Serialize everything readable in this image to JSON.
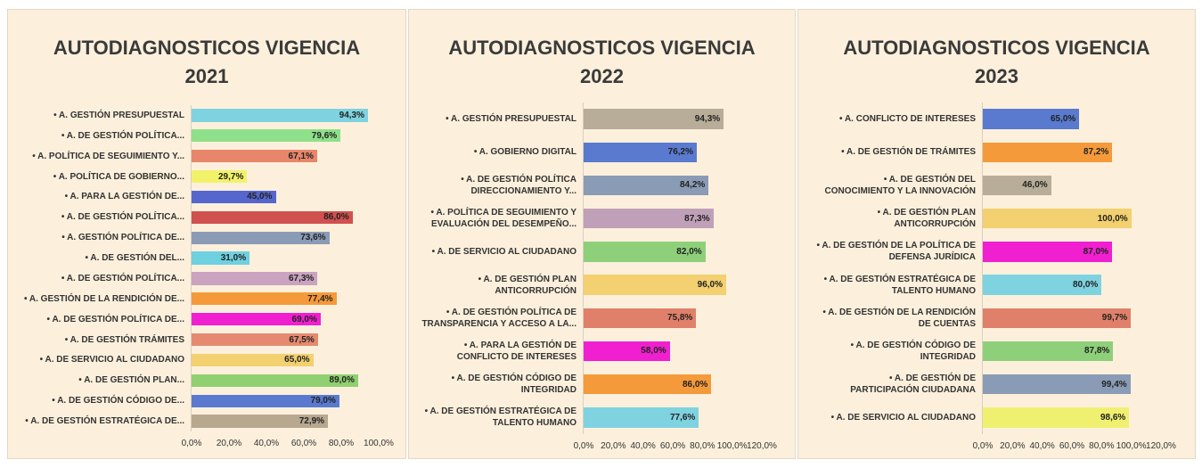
{
  "chart_data": [
    {
      "type": "bar",
      "orientation": "horizontal",
      "title": "AUTODIAGNOSTICOS VIGENCIA\n2021",
      "categories": [
        "• A. GESTIÓN PRESUPUESTAL",
        "• A. DE GESTIÓN POLÍTICA...",
        "• A. POLÍTICA DE SEGUIMIENTO Y...",
        "• A. POLÍTICA DE GOBIERNO...",
        "• A. PARA LA GESTIÓN DE...",
        "• A. DE GESTIÓN POLÍTICA...",
        "• A. GESTIÓN POLÍTICA DE...",
        "• A. DE GESTIÓN DEL...",
        "• A. DE GESTIÓN POLÍTICA...",
        "• A. GESTIÓN DE LA RENDICIÓN DE...",
        "• A. DE GESTIÓN POLÍTICA DE...",
        "• A. DE GESTIÓN TRÁMITES",
        "• A. DE SERVICIO AL CIUDADANO",
        "• A. DE GESTIÓN PLAN...",
        "• A. DE GESTIÓN CÓDIGO DE...",
        "• A. DE GESTIÓN ESTRATÉGICA DE..."
      ],
      "values": [
        94.3,
        79.6,
        67.1,
        29.7,
        45.0,
        86.0,
        73.6,
        31.0,
        67.3,
        77.4,
        69.0,
        67.5,
        65.0,
        89.0,
        79.0,
        72.9
      ],
      "value_labels": [
        "94,3%",
        "79,6%",
        "67,1%",
        "29,7%",
        "45,0%",
        "86,0%",
        "73,6%",
        "31,0%",
        "67,3%",
        "77,4%",
        "69,0%",
        "67,5%",
        "65,0%",
        "89,0%",
        "79,0%",
        "72,9%"
      ],
      "colors": [
        "#7fd3e0",
        "#8ee08a",
        "#e8866b",
        "#f2f26a",
        "#5566cc",
        "#d05050",
        "#8a9bb5",
        "#6fd0e0",
        "#c9a3c0",
        "#f59a3a",
        "#f020d0",
        "#e58a70",
        "#f3d070",
        "#90d070",
        "#5a7ad0",
        "#b8a890"
      ],
      "xlim": [
        0,
        100
      ],
      "xticks": [
        {
          "value": 0,
          "label": "0,0%"
        },
        {
          "value": 20,
          "label": "20,0%"
        },
        {
          "value": 40,
          "label": "40,0%"
        },
        {
          "value": 60,
          "label": "60,0%"
        },
        {
          "value": 80,
          "label": "80,0%"
        },
        {
          "value": 100,
          "label": "100,0%"
        }
      ]
    },
    {
      "type": "bar",
      "orientation": "horizontal",
      "title": "AUTODIAGNOSTICOS VIGENCIA\n2022",
      "categories": [
        "• A. GESTIÓN PRESUPUESTAL",
        "• A. GOBIERNO DIGITAL",
        "• A. DE GESTIÓN POLÍTICA\nDIRECCIONAMIENTO Y...",
        "• A. POLÍTICA DE SEGUIMIENTO Y\nEVALUACIÓN DEL DESEMPEÑO...",
        "• A. DE SERVICIO AL CIUDADANO",
        "• A. DE GESTIÓN PLAN\nANTICORRUPCIÓN",
        "• A. DE GESTIÓN POLÍTICA DE\nTRANSPARENCIA Y ACCESO A LA...",
        "• A. PARA LA GESTIÓN DE\nCONFLICTO DE INTERESES",
        "• A. DE GESTIÓN CÓDIGO DE\nINTEGRIDAD",
        "• A. DE GESTIÓN ESTRATÉGICA DE\nTALENTO HUMANO"
      ],
      "values": [
        94.3,
        76.2,
        84.2,
        87.3,
        82.0,
        96.0,
        75.8,
        58.0,
        86.0,
        77.6
      ],
      "value_labels": [
        "94,3%",
        "76,2%",
        "84,2%",
        "87,3%",
        "82,0%",
        "96,0%",
        "75,8%",
        "58,0%",
        "86,0%",
        "77,6%"
      ],
      "colors": [
        "#b8ad98",
        "#5a7ad0",
        "#8a9bb5",
        "#c0a0b8",
        "#8ed07a",
        "#f3d070",
        "#e0806a",
        "#f020d0",
        "#f59a3a",
        "#7fd3e0"
      ],
      "xlim": [
        0,
        120
      ],
      "xticks": [
        {
          "value": 0,
          "label": "0,0%"
        },
        {
          "value": 20,
          "label": "20,0%"
        },
        {
          "value": 40,
          "label": "40,0%"
        },
        {
          "value": 60,
          "label": "60,0%"
        },
        {
          "value": 80,
          "label": "80,0%"
        },
        {
          "value": 100,
          "label": "100,0%"
        },
        {
          "value": 120,
          "label": "120,0%"
        }
      ]
    },
    {
      "type": "bar",
      "orientation": "horizontal",
      "title": "AUTODIAGNOSTICOS VIGENCIA\n2023",
      "categories": [
        "• A. CONFLICTO DE INTERESES",
        "• A. DE GESTIÓN DE TRÁMITES",
        "• A. DE GESTIÓN DEL\nCONOCIMIENTO Y LA INNOVACIÓN",
        "• A. DE GESTIÓN PLAN\nANTICORRUPCIÓN",
        "• A. DE GESTIÓN DE LA POLÍTICA DE\nDEFENSA JURÍDICA",
        "• A. DE GESTIÓN ESTRATÉGICA DE\nTALENTO HUMANO",
        "• A. DE GESTIÓN DE LA RENDICIÓN\nDE CUENTAS",
        "• A. DE GESTIÓN CÓDIGO DE\nINTEGRIDAD",
        "• A. DE GESTIÓN DE\nPARTICIPACIÓN CIUDADANA",
        "• A. DE SERVICIO AL CIUDADANO"
      ],
      "values": [
        65.0,
        87.2,
        46.0,
        100.0,
        87.0,
        80.0,
        99.7,
        87.8,
        99.4,
        98.6
      ],
      "value_labels": [
        "65,0%",
        "87,2%",
        "46,0%",
        "100,0%",
        "87,0%",
        "80,0%",
        "99,7%",
        "87,8%",
        "99,4%",
        "98,6%"
      ],
      "colors": [
        "#5a7ad0",
        "#f59a3a",
        "#b8ad98",
        "#f3d070",
        "#f020d0",
        "#7fd3e0",
        "#e0806a",
        "#8ed07a",
        "#8a9bb5",
        "#f0f070"
      ],
      "xlim": [
        0,
        120
      ],
      "xticks": [
        {
          "value": 0,
          "label": "0,0%"
        },
        {
          "value": 20,
          "label": "20,0%"
        },
        {
          "value": 40,
          "label": "40,0%"
        },
        {
          "value": 60,
          "label": "60,0%"
        },
        {
          "value": 80,
          "label": "80,0%"
        },
        {
          "value": 100,
          "label": "100,0%"
        },
        {
          "value": 120,
          "label": "120,0%"
        }
      ]
    }
  ]
}
